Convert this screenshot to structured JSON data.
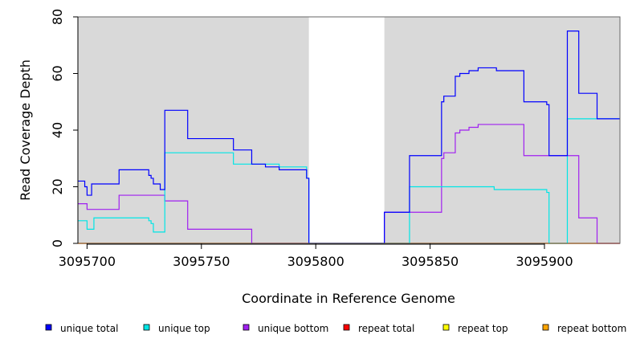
{
  "chart_data": {
    "type": "line",
    "title": "",
    "xlabel": "Coordinate in Reference Genome",
    "ylabel": "Read Coverage Depth",
    "xlim": [
      3095696,
      3095933
    ],
    "ylim": [
      0,
      80
    ],
    "x_ticks": [
      3095700,
      3095750,
      3095800,
      3095850,
      3095900
    ],
    "y_ticks": [
      0,
      20,
      40,
      60,
      80
    ],
    "grid": false,
    "background": {
      "shaded_color": "#d9d9d9",
      "shaded_ranges": [
        [
          3095696,
          3095797
        ],
        [
          3095830,
          3095933
        ]
      ]
    },
    "legend_position": "bottom",
    "series": [
      {
        "name": "unique total",
        "color": "#0000ff",
        "x": [
          3095696,
          3095698,
          3095699,
          3095700,
          3095702,
          3095703,
          3095714,
          3095727,
          3095728,
          3095729,
          3095732,
          3095734,
          3095744,
          3095764,
          3095772,
          3095778,
          3095784,
          3095796,
          3095797,
          3095830,
          3095841,
          3095855,
          3095856,
          3095861,
          3095863,
          3095867,
          3095871,
          3095879,
          3095891,
          3095901,
          3095902,
          3095909,
          3095910,
          3095915,
          3095923,
          3095933
        ],
        "y": [
          22,
          22,
          20,
          17,
          21,
          21,
          26,
          24,
          23,
          21,
          19,
          47,
          37,
          33,
          28,
          27,
          26,
          23,
          0,
          11,
          31,
          50,
          52,
          59,
          60,
          61,
          62,
          61,
          50,
          49,
          31,
          31,
          75,
          53,
          44,
          44
        ]
      },
      {
        "name": "unique top",
        "color": "#00e5e5",
        "x": [
          3095696,
          3095699,
          3095700,
          3095702,
          3095703,
          3095714,
          3095727,
          3095728,
          3095729,
          3095731,
          3095734,
          3095764,
          3095772,
          3095784,
          3095796,
          3095797,
          3095841,
          3095878,
          3095901,
          3095902,
          3095910,
          3095933
        ],
        "y": [
          8,
          8,
          5,
          5,
          9,
          9,
          8,
          7,
          4,
          4,
          32,
          28,
          28,
          27,
          23,
          0,
          20,
          19,
          18,
          0,
          44,
          44
        ]
      },
      {
        "name": "unique bottom",
        "color": "#a020f0",
        "x": [
          3095696,
          3095699,
          3095700,
          3095714,
          3095730,
          3095734,
          3095744,
          3095771,
          3095772,
          3095797,
          3095830,
          3095855,
          3095856,
          3095861,
          3095863,
          3095867,
          3095871,
          3095891,
          3095909,
          3095915,
          3095923,
          3095933
        ],
        "y": [
          14,
          14,
          12,
          17,
          17,
          15,
          5,
          5,
          0,
          0,
          11,
          30,
          32,
          39,
          40,
          41,
          42,
          31,
          31,
          9,
          0,
          0
        ]
      },
      {
        "name": "repeat total",
        "color": "#ff0000",
        "x": [
          3095696,
          3095933
        ],
        "y": [
          0,
          0
        ]
      },
      {
        "name": "repeat top",
        "color": "#ffff00",
        "x": [
          3095696,
          3095933
        ],
        "y": [
          0,
          0
        ]
      },
      {
        "name": "repeat bottom",
        "color": "#ffa500",
        "x": [
          3095696,
          3095933
        ],
        "y": [
          0,
          0
        ]
      }
    ]
  }
}
